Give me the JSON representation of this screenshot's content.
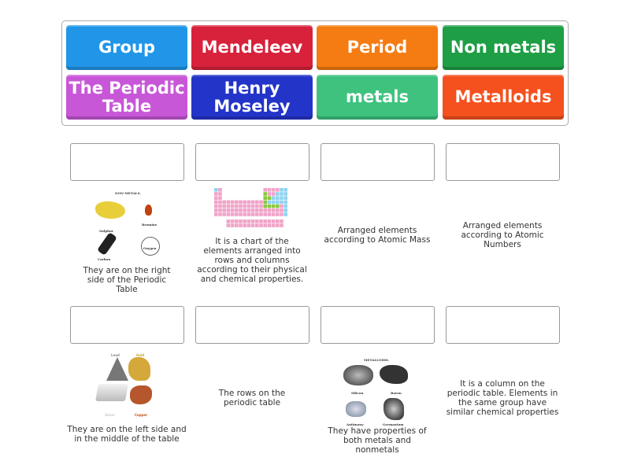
{
  "word_bank": [
    {
      "label": "Group",
      "color": "#2196e8"
    },
    {
      "label": "Mendeleev",
      "color": "#d8213b"
    },
    {
      "label": "Period",
      "color": "#f57c12"
    },
    {
      "label": "Non metals",
      "color": "#1e9e45"
    },
    {
      "label": "The Periodic Table",
      "color": "#c857d8"
    },
    {
      "label": "Henry Moseley",
      "color": "#2334c8"
    },
    {
      "label": "metals",
      "color": "#3ec27e"
    },
    {
      "label": "Metalloids",
      "color": "#f4511e"
    }
  ],
  "cards": [
    {
      "text": "They are on the right side of the Periodic Table",
      "image": "non-metals",
      "image_title": "NON-METALS.",
      "image_labels": [
        "Sulphur",
        "Bromine",
        "Carbon",
        "Oxygen"
      ]
    },
    {
      "text": "It is a chart of the elements arranged into rows and columns according to their physical and chemical properties.",
      "image": "periodic-table"
    },
    {
      "text": "Arranged elements according to Atomic Mass"
    },
    {
      "text": "Arranged elements according to Atomic Numbers"
    },
    {
      "text": "They are on the left side and in the middle of the table",
      "image": "metals",
      "image_labels": [
        "Lead",
        "Gold",
        "Silver",
        "Copper"
      ]
    },
    {
      "text": "The rows on the periodic table"
    },
    {
      "text": "They have properties of both metals and nonmetals",
      "image": "metalloids",
      "image_title": "METALLOIDS.",
      "image_labels": [
        "Silicon",
        "Boron",
        "Antimony",
        "Germanium"
      ]
    },
    {
      "text": "It is a column on the periodic table. Elements in the same group have similar chemical properties"
    }
  ]
}
